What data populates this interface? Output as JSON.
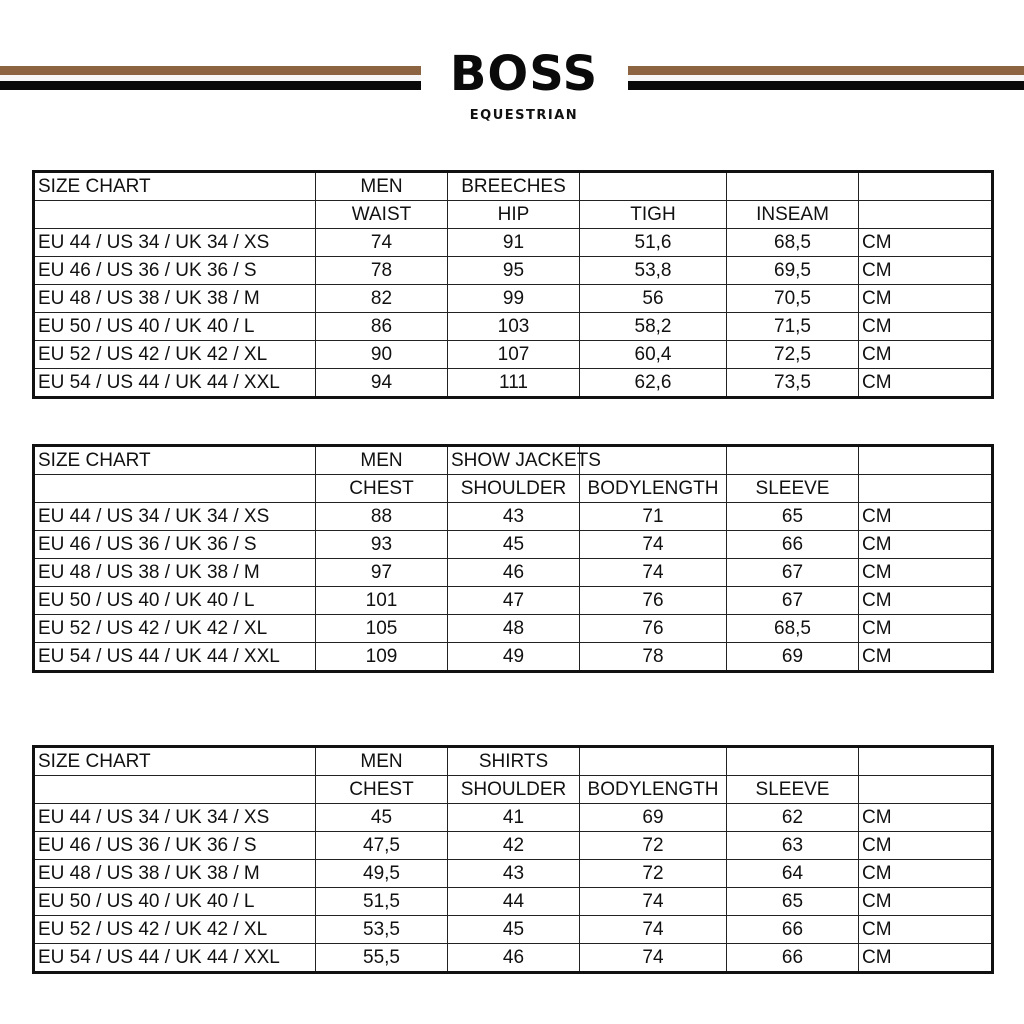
{
  "brand": {
    "logo": "BOSS",
    "subtitle": "EQUESTRIAN",
    "colors": {
      "brown": "#8c6441",
      "black": "#0a0a0a"
    }
  },
  "tables": [
    {
      "title": "SIZE CHART",
      "gender": "MEN",
      "category": "BREECHES",
      "columns": [
        "WAIST",
        "HIP",
        "TIGH",
        "INSEAM"
      ],
      "rows": [
        {
          "size": "EU 44 / US 34 / UK 34 / XS",
          "values": [
            "74",
            "91",
            "51,6",
            "68,5"
          ],
          "unit": "CM"
        },
        {
          "size": "EU 46 / US 36 / UK 36 / S",
          "values": [
            "78",
            "95",
            "53,8",
            "69,5"
          ],
          "unit": "CM"
        },
        {
          "size": "EU 48 / US 38 / UK 38 / M",
          "values": [
            "82",
            "99",
            "56",
            "70,5"
          ],
          "unit": "CM"
        },
        {
          "size": "EU 50 / US 40 / UK 40 / L",
          "values": [
            "86",
            "103",
            "58,2",
            "71,5"
          ],
          "unit": "CM"
        },
        {
          "size": "EU 52 / US 42 / UK 42 / XL",
          "values": [
            "90",
            "107",
            "60,4",
            "72,5"
          ],
          "unit": "CM"
        },
        {
          "size": "EU 54 / US 44 / UK 44 / XXL",
          "values": [
            "94",
            "111",
            "62,6",
            "73,5"
          ],
          "unit": "CM"
        }
      ]
    },
    {
      "title": "SIZE CHART",
      "gender": "MEN",
      "category": "SHOW JACKETS",
      "columns": [
        "CHEST",
        "SHOULDER",
        "BODYLENGTH",
        "SLEEVE"
      ],
      "rows": [
        {
          "size": "EU 44 / US 34 / UK 34 / XS",
          "values": [
            "88",
            "43",
            "71",
            "65"
          ],
          "unit": "CM"
        },
        {
          "size": "EU 46 / US 36 / UK 36 / S",
          "values": [
            "93",
            "45",
            "74",
            "66"
          ],
          "unit": "CM"
        },
        {
          "size": "EU 48 / US 38 / UK 38 / M",
          "values": [
            "97",
            "46",
            "74",
            "67"
          ],
          "unit": "CM"
        },
        {
          "size": "EU 50 / US 40 / UK 40 / L",
          "values": [
            "101",
            "47",
            "76",
            "67"
          ],
          "unit": "CM"
        },
        {
          "size": "EU 52 / US 42 / UK 42 / XL",
          "values": [
            "105",
            "48",
            "76",
            "68,5"
          ],
          "unit": "CM"
        },
        {
          "size": "EU 54 / US 44 / UK 44 / XXL",
          "values": [
            "109",
            "49",
            "78",
            "69"
          ],
          "unit": "CM"
        }
      ]
    },
    {
      "title": "SIZE CHART",
      "gender": "MEN",
      "category": "SHIRTS",
      "columns": [
        "CHEST",
        "SHOULDER",
        "BODYLENGTH",
        "SLEEVE"
      ],
      "rows": [
        {
          "size": "EU 44 / US 34 / UK 34 / XS",
          "values": [
            "45",
            "41",
            "69",
            "62"
          ],
          "unit": "CM"
        },
        {
          "size": "EU 46 / US 36 / UK 36 / S",
          "values": [
            "47,5",
            "42",
            "72",
            "63"
          ],
          "unit": "CM"
        },
        {
          "size": "EU 48 / US 38 / UK 38 / M",
          "values": [
            "49,5",
            "43",
            "72",
            "64"
          ],
          "unit": "CM"
        },
        {
          "size": "EU 50 / US 40 / UK 40 / L",
          "values": [
            "51,5",
            "44",
            "74",
            "65"
          ],
          "unit": "CM"
        },
        {
          "size": "EU 52 / US 42 / UK 42 / XL",
          "values": [
            "53,5",
            "45",
            "74",
            "66"
          ],
          "unit": "CM"
        },
        {
          "size": "EU 54 / US 44 / UK 44 / XXL",
          "values": [
            "55,5",
            "46",
            "74",
            "66"
          ],
          "unit": "CM"
        }
      ]
    }
  ]
}
